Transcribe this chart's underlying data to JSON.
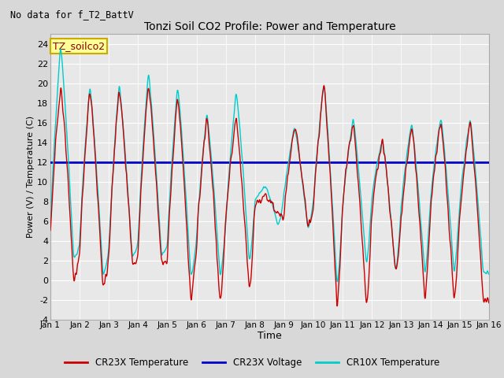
{
  "title": "Tonzi Soil CO2 Profile: Power and Temperature",
  "subtitle": "No data for f_T2_BattV",
  "xlabel": "Time",
  "ylabel": "Power (V) / Temperature (C)",
  "ylim": [
    -4,
    25
  ],
  "yticks": [
    -4,
    -2,
    0,
    2,
    4,
    6,
    8,
    10,
    12,
    14,
    16,
    18,
    20,
    22,
    24
  ],
  "xlim": [
    0,
    15
  ],
  "xtick_labels": [
    "Jan 1",
    "Jan 2",
    "Jan 3",
    "Jan 4",
    "Jan 5",
    "Jan 6",
    "Jan 7",
    "Jan 8",
    "Jan 9",
    "Jan 10",
    "Jan 11",
    "Jan 12",
    "Jan 13",
    "Jan 14",
    "Jan 15",
    "Jan 16"
  ],
  "voltage_line_y": 12.0,
  "voltage_color": "#0000cc",
  "cr23x_temp_color": "#cc0000",
  "cr10x_temp_color": "#00cccc",
  "background_color": "#d8d8d8",
  "plot_bg_color": "#e8e8e8",
  "grid_color": "#ffffff",
  "legend_label_annotation": "TZ_soilco2",
  "legend_items": [
    "CR23X Temperature",
    "CR23X Voltage",
    "CR10X Temperature"
  ],
  "cr23x_peaks": [
    20.0,
    19.5,
    19.8,
    20.2,
    19.0,
    16.7,
    16.5,
    8.5,
    15.8,
    20.0,
    16.2,
    14.2,
    15.8,
    16.2,
    16.2
  ],
  "cr23x_mins": [
    0.0,
    -0.8,
    1.7,
    1.8,
    -2.2,
    -2.4,
    -1.0,
    6.5,
    5.5,
    -2.5,
    -2.6,
    0.8,
    -1.8,
    -2.3,
    -2.2
  ],
  "cr23x_starts": [
    4.5,
    2.5,
    2.3,
    2.7,
    2.0,
    3.5,
    6.0,
    7.5,
    7.2,
    7.5,
    8.0,
    7.0,
    6.0,
    7.0,
    6.5
  ],
  "cr10x_peaks": [
    23.8,
    19.8,
    20.0,
    21.2,
    19.8,
    17.0,
    19.2,
    9.5,
    15.5,
    20.0,
    16.5,
    14.3,
    16.0,
    16.5,
    16.4
  ],
  "cr10x_mins": [
    2.2,
    0.5,
    2.4,
    2.5,
    0.3,
    0.5,
    1.8,
    5.5,
    5.2,
    -0.5,
    1.5,
    0.8,
    0.8,
    0.8,
    0.8
  ],
  "cr10x_starts": [
    5.0,
    3.5,
    3.0,
    3.8,
    3.5,
    4.0,
    5.5,
    8.0,
    9.0,
    8.0,
    7.5,
    8.5,
    7.5,
    8.0,
    7.8
  ]
}
